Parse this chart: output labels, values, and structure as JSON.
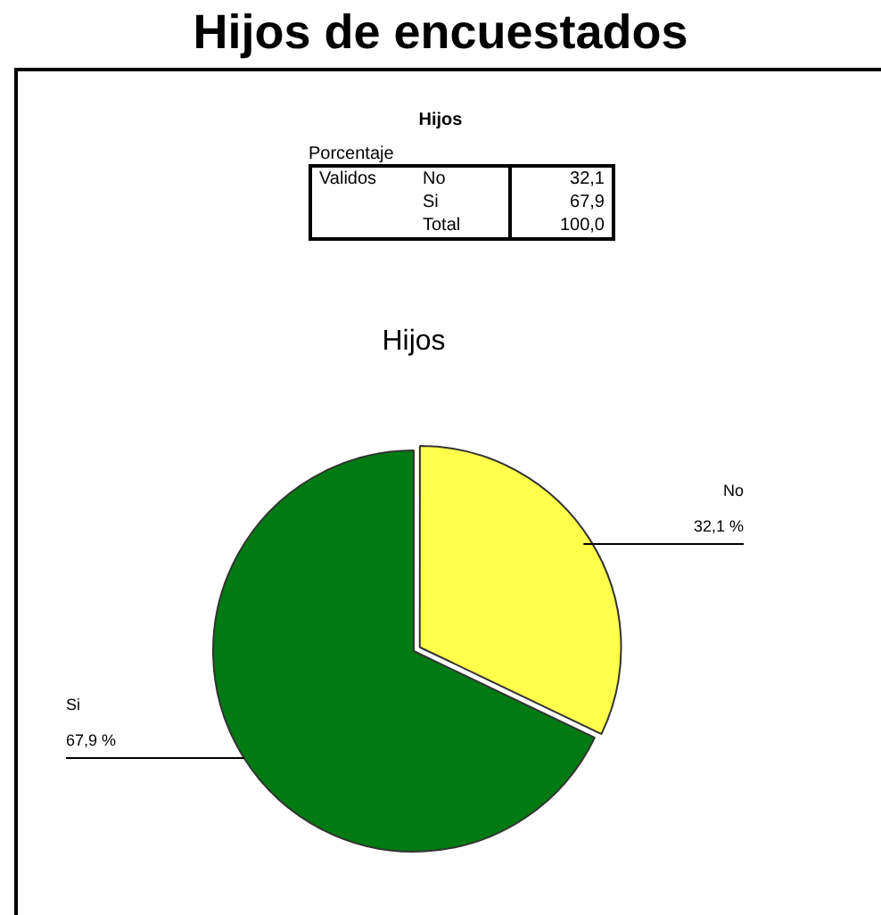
{
  "chart_data": {
    "type": "pie",
    "title": "Hijos de encuestados",
    "subtitle": "Hijos",
    "annotations": [
      "Hijos",
      "Porcentaje",
      "Validos",
      "32,1",
      "67,9",
      "Total",
      "100,0"
    ],
    "categories": [
      "No",
      "Si"
    ],
    "values": [
      32.1,
      67.9
    ],
    "colors": [
      "#ffff4c",
      "#007a13"
    ],
    "value_labels": [
      "32,1 %",
      "67,9 %"
    ],
    "legend": false
  }
}
